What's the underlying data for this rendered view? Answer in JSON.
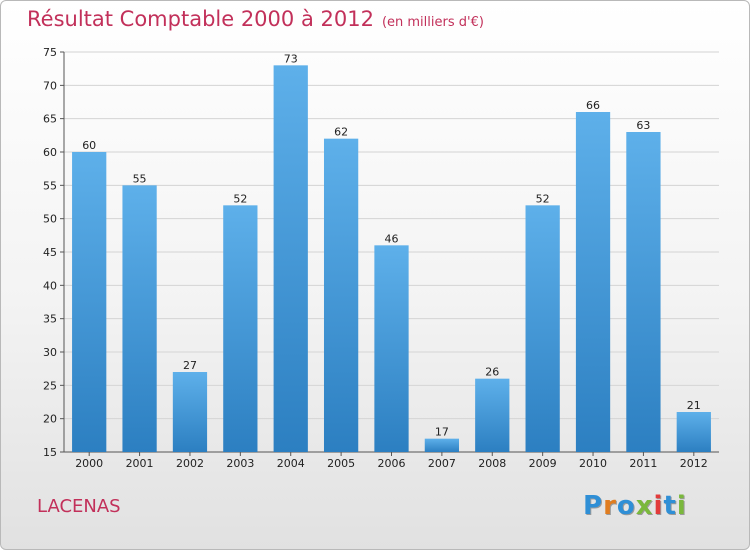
{
  "header": {
    "title": "Résultat Comptable 2000 à 2012",
    "subtitle": "(en milliers d'€)"
  },
  "footer": {
    "place": "LACENAS",
    "logo": [
      "P",
      "r",
      "o",
      "x",
      "i",
      "t",
      "i"
    ],
    "logo_colors": [
      "#2f8fd6",
      "#e07d20",
      "#2f8fd6",
      "#7ab83c",
      "#e23b3b",
      "#2f8fd6",
      "#7ab83c"
    ]
  },
  "colors": {
    "title": "#c2305a",
    "bar_light": "#5eb0ea",
    "bar_dark": "#2c7fc1",
    "grid": "#d4d4d4",
    "axis": "#555555"
  },
  "chart_data": {
    "type": "bar",
    "title": "Résultat Comptable 2000 à 2012",
    "subtitle": "(en milliers d'€)",
    "categories": [
      "2000",
      "2001",
      "2002",
      "2003",
      "2004",
      "2005",
      "2006",
      "2007",
      "2008",
      "2009",
      "2010",
      "2011",
      "2012"
    ],
    "values": [
      60,
      55,
      27,
      52,
      73,
      62,
      46,
      17,
      26,
      52,
      66,
      63,
      21
    ],
    "ylim": [
      15,
      75
    ],
    "yticks": [
      15,
      20,
      25,
      30,
      35,
      40,
      45,
      50,
      55,
      60,
      65,
      70,
      75
    ],
    "grid": true,
    "legend": "none"
  }
}
